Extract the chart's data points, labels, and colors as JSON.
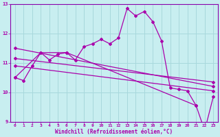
{
  "title": "",
  "xlabel": "Windchill (Refroidissement éolien,°C)",
  "ylabel": "",
  "bg_color": "#c8eef0",
  "grid_color": "#a8d8dc",
  "line_color": "#aa00aa",
  "spine_color": "#8800aa",
  "xlim": [
    -0.5,
    23.5
  ],
  "ylim": [
    9,
    13
  ],
  "yticks": [
    9,
    10,
    11,
    12,
    13
  ],
  "xticks": [
    0,
    1,
    2,
    3,
    4,
    5,
    6,
    7,
    8,
    9,
    10,
    11,
    12,
    13,
    14,
    15,
    16,
    17,
    18,
    19,
    20,
    21,
    22,
    23
  ],
  "main_x": [
    0,
    1,
    2,
    3,
    4,
    5,
    6,
    7,
    8,
    9,
    10,
    11,
    12,
    13,
    14,
    15,
    16,
    17,
    18,
    19,
    20,
    21,
    22,
    23
  ],
  "main_y": [
    10.5,
    10.4,
    10.9,
    11.35,
    11.1,
    11.3,
    11.35,
    11.1,
    11.55,
    11.65,
    11.8,
    11.65,
    11.85,
    12.85,
    12.6,
    12.75,
    12.4,
    11.75,
    10.15,
    10.1,
    10.05,
    9.55,
    8.7,
    9.85
  ],
  "trend1_x": [
    0,
    3,
    6,
    21
  ],
  "trend1_y": [
    10.5,
    11.35,
    11.35,
    9.55
  ],
  "trend2_x": [
    0,
    23
  ],
  "trend2_y": [
    11.5,
    10.2
  ],
  "trend3_x": [
    0,
    23
  ],
  "trend3_y": [
    11.15,
    10.35
  ],
  "trend4_x": [
    0,
    23
  ],
  "trend4_y": [
    10.9,
    10.05
  ]
}
